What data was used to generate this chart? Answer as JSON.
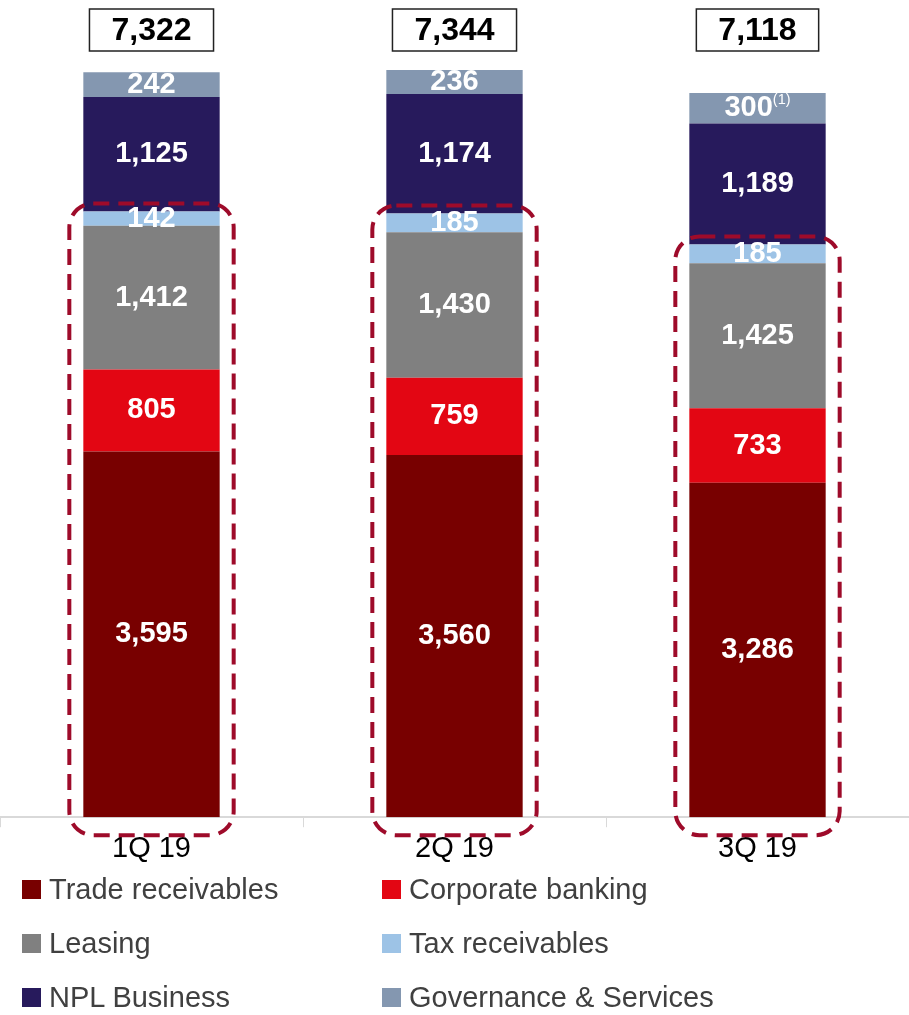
{
  "chart_data": {
    "type": "bar",
    "stacked": true,
    "categories": [
      "1Q 19",
      "2Q 19",
      "3Q 19"
    ],
    "series": [
      {
        "name": "Trade receivables",
        "color": "#780000",
        "values": [
          3595,
          3560,
          3286
        ],
        "value_labels": [
          "3,595",
          "3,560",
          "3,286"
        ]
      },
      {
        "name": "Corporate banking",
        "color": "#e30613",
        "values": [
          805,
          759,
          733
        ],
        "value_labels": [
          "805",
          "759",
          "733"
        ]
      },
      {
        "name": "Leasing",
        "color": "#808080",
        "values": [
          1412,
          1430,
          1425
        ],
        "value_labels": [
          "1,412",
          "1,430",
          "1,425"
        ]
      },
      {
        "name": "Tax receivables",
        "color": "#9dc3e6",
        "values": [
          142,
          185,
          185
        ],
        "value_labels": [
          "142",
          "185",
          "185"
        ]
      },
      {
        "name": "NPL Business",
        "color": "#271a5c",
        "values": [
          1125,
          1174,
          1189
        ],
        "value_labels": [
          "1,125",
          "1,174",
          "1,189"
        ]
      },
      {
        "name": "Governance & Services",
        "color": "#8497b0",
        "values": [
          242,
          236,
          300
        ],
        "value_labels": [
          "242",
          "236",
          "300$^{(1)}$"
        ]
      }
    ],
    "totals": [
      "7,322",
      "7,344",
      "7,118"
    ],
    "legend": "bottom",
    "grid": false,
    "tick_labels": "x"
  }
}
